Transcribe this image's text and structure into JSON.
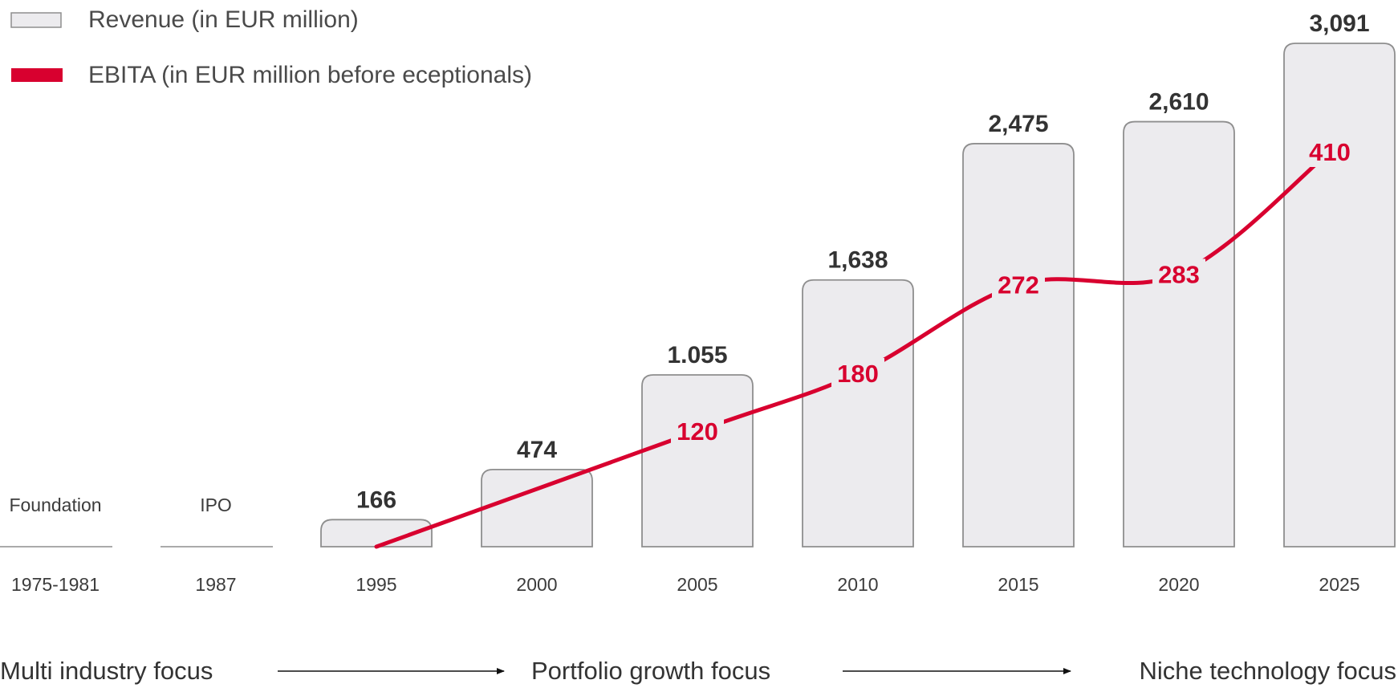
{
  "legend": {
    "revenue_label": "Revenue (in EUR million)",
    "ebita_label": "EBITA (in EUR million before eceptionals)"
  },
  "colors": {
    "bar_fill": "#ecebee",
    "bar_stroke": "#8e8e8e",
    "ebita_line": "#d8002f",
    "text_dark": "#333333"
  },
  "milestones": [
    {
      "label": "Foundation",
      "year": "1975-1981"
    },
    {
      "label": "IPO",
      "year": "1987"
    }
  ],
  "phases": [
    "Multi industry focus",
    "Portfolio growth focus",
    "Niche technology focus"
  ],
  "chart_data": {
    "type": "bar",
    "categories": [
      "1995",
      "2000",
      "2005",
      "2010",
      "2015",
      "2020",
      "2025"
    ],
    "series": [
      {
        "name": "Revenue (in EUR million)",
        "type": "bar",
        "values": [
          166,
          474,
          1055,
          1638,
          2475,
          2610,
          3091
        ],
        "labels": [
          "166",
          "474",
          "1.055",
          "1,638",
          "2,475",
          "2,610",
          "3,091"
        ]
      },
      {
        "name": "EBITA (in EUR million before eceptionals)",
        "type": "line",
        "values": [
          null,
          null,
          120,
          180,
          272,
          283,
          410
        ],
        "labels": [
          "",
          "",
          "120",
          "180",
          "272",
          "283",
          "410"
        ]
      }
    ],
    "xlabel": "",
    "ylabel": "",
    "ylim": [
      0,
      3091
    ],
    "grid": false,
    "legend_position": "top-left"
  }
}
